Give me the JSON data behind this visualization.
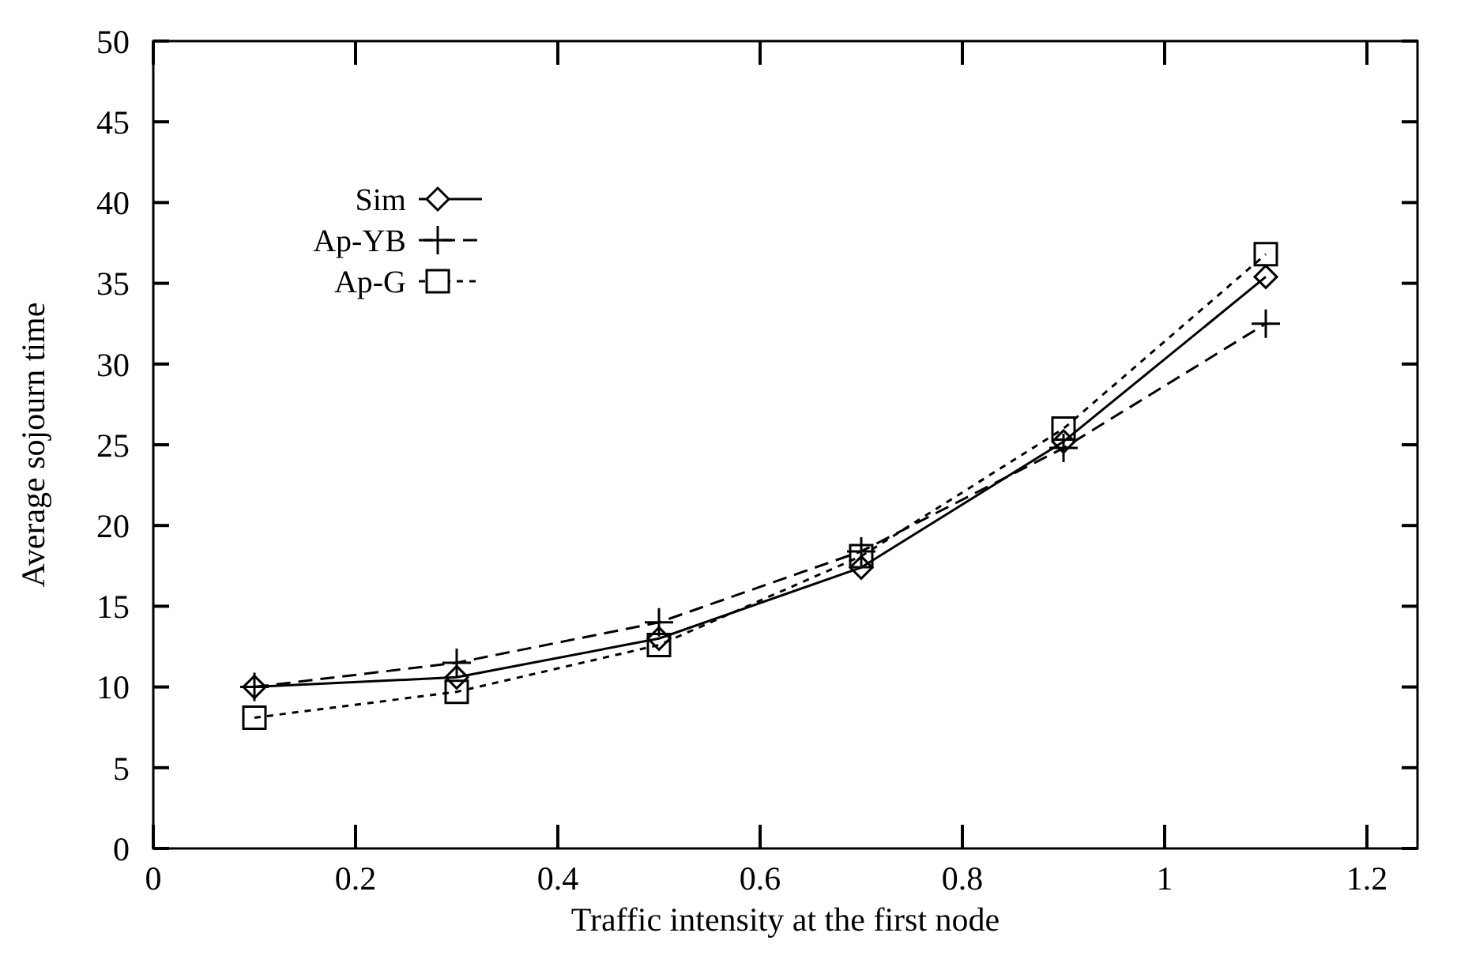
{
  "chart_data": {
    "type": "line",
    "xlabel": "Traffic intensity at the first node",
    "ylabel": "Average sojourn time",
    "x": [
      0.1,
      0.3,
      0.5,
      0.7,
      0.9,
      1.1
    ],
    "series": [
      {
        "name": "Sim",
        "color": "#000000",
        "marker": "diamond",
        "line_style": "solid",
        "values": [
          10.0,
          10.6,
          13.0,
          17.4,
          25.2,
          35.4
        ]
      },
      {
        "name": "Ap-YB",
        "color": "#000000",
        "marker": "cross",
        "line_style": "dashed",
        "values": [
          10.0,
          11.5,
          14.0,
          18.4,
          24.8,
          32.5
        ]
      },
      {
        "name": "Ap-G",
        "color": "#000000",
        "marker": "square",
        "line_style": "dotted",
        "values": [
          8.1,
          9.7,
          12.6,
          18.1,
          26.0,
          36.8
        ]
      }
    ],
    "xlim": [
      0,
      1.25
    ],
    "xticks": [
      0,
      0.2,
      0.4,
      0.6,
      0.8,
      1,
      1.2
    ],
    "ylim": [
      0,
      50
    ],
    "yticks": [
      0,
      5,
      10,
      15,
      20,
      25,
      30,
      35,
      40,
      45,
      50
    ],
    "grid": false,
    "legend": "top left"
  }
}
